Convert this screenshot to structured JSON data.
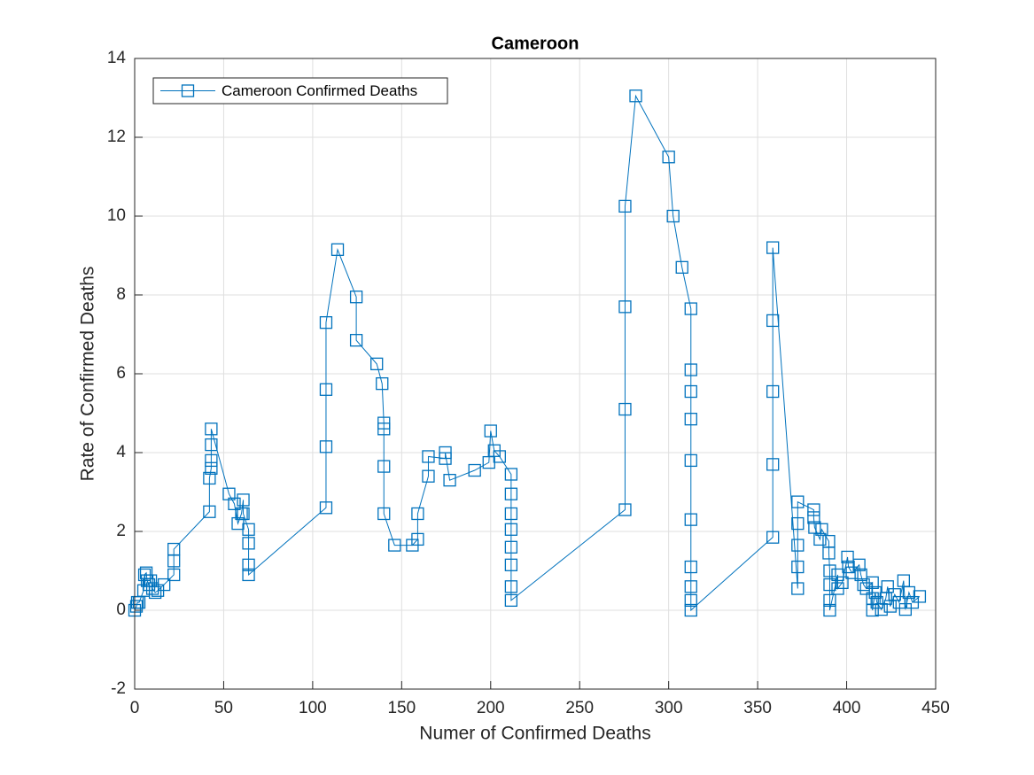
{
  "chart_data": {
    "type": "line",
    "title": "Cameroon",
    "xlabel": "Numer of Confirmed Deaths",
    "ylabel": "Rate of Confirmed Deaths",
    "x": [
      0,
      1,
      1.5,
      2.5,
      5,
      5.5,
      6.5,
      7,
      8,
      9,
      10,
      11.5,
      13,
      16.5,
      22,
      22,
      22,
      42,
      42,
      43,
      43,
      43,
      43,
      53,
      56,
      58,
      60,
      61,
      61,
      64,
      64,
      64,
      64,
      107.5,
      107.5,
      107.5,
      107.5,
      114,
      124.5,
      124.5,
      136,
      139,
      140,
      140,
      140,
      140,
      146,
      156,
      159,
      159,
      165,
      165,
      174.5,
      174.5,
      177,
      191,
      199,
      200,
      202,
      205,
      211.5,
      211.5,
      211.5,
      211.5,
      211.5,
      211.5,
      211.5,
      211.5,
      275.5,
      275.5,
      275.5,
      275.5,
      281.5,
      300,
      302.5,
      307.5,
      312.5,
      312.5,
      312.5,
      312.5,
      312.5,
      312.5,
      312.5,
      312.5,
      312.5,
      312.5,
      358.5,
      358.5,
      358.5,
      358.5,
      358.5,
      372.5,
      372.5,
      372.5,
      372.5,
      372.5,
      381.5,
      381.5,
      382,
      385,
      386,
      390,
      390,
      390.5,
      390.5,
      390.5,
      390.5,
      395,
      395,
      397.5,
      400.5,
      401,
      403,
      407,
      408,
      409.5,
      411,
      414.5,
      414.5,
      414.5,
      416,
      417,
      419.5,
      422,
      423,
      424.5,
      427,
      429.5,
      432,
      433,
      435,
      437,
      441
    ],
    "series": [
      {
        "name": "Cameroon Confirmed Deaths",
        "color": "#0072bd",
        "marker": "square",
        "values": [
          0,
          0.1,
          0.2,
          0.2,
          0.5,
          0.9,
          0.95,
          0.75,
          0.65,
          0.75,
          0.55,
          0.45,
          0.5,
          0.65,
          0.9,
          1.25,
          1.55,
          2.5,
          3.35,
          3.6,
          3.8,
          4.2,
          4.6,
          2.95,
          2.7,
          2.2,
          2.45,
          2.8,
          2.45,
          2.05,
          1.7,
          1.15,
          0.9,
          2.6,
          4.15,
          5.6,
          7.3,
          9.15,
          7.95,
          6.85,
          6.25,
          5.75,
          4.75,
          4.6,
          3.65,
          2.45,
          1.65,
          1.65,
          1.8,
          2.45,
          3.4,
          3.9,
          3.85,
          4.0,
          3.3,
          3.55,
          3.75,
          4.55,
          4.05,
          3.9,
          3.45,
          2.95,
          2.45,
          2.05,
          1.6,
          1.15,
          0.6,
          0.25,
          2.55,
          5.1,
          7.7,
          10.25,
          13.05,
          11.5,
          10,
          8.7,
          7.65,
          6.1,
          5.55,
          4.85,
          3.8,
          2.3,
          1.1,
          0.6,
          0.25,
          0,
          1.85,
          3.7,
          5.55,
          7.35,
          9.2,
          0.55,
          1.1,
          1.65,
          2.2,
          2.75,
          2.55,
          2.35,
          2.1,
          1.8,
          2.05,
          1.75,
          1.45,
          1.0,
          0.65,
          0.25,
          0,
          0.9,
          0.55,
          0.7,
          1.35,
          1.1,
          0.95,
          1.15,
          0.9,
          0.65,
          0.55,
          0.7,
          0.3,
          0,
          0.45,
          0.2,
          0.02,
          0.3,
          0.6,
          0.1,
          0.4,
          0.2,
          0.75,
          0.02,
          0.45,
          0.2,
          0.35
        ]
      }
    ],
    "xlim": [
      0,
      450
    ],
    "ylim": [
      -2,
      14
    ],
    "xticks": [
      0,
      50,
      100,
      150,
      200,
      250,
      300,
      350,
      400,
      450
    ],
    "yticks": [
      -2,
      0,
      2,
      4,
      6,
      8,
      10,
      12,
      14
    ],
    "grid": true,
    "legend": "upper left"
  }
}
